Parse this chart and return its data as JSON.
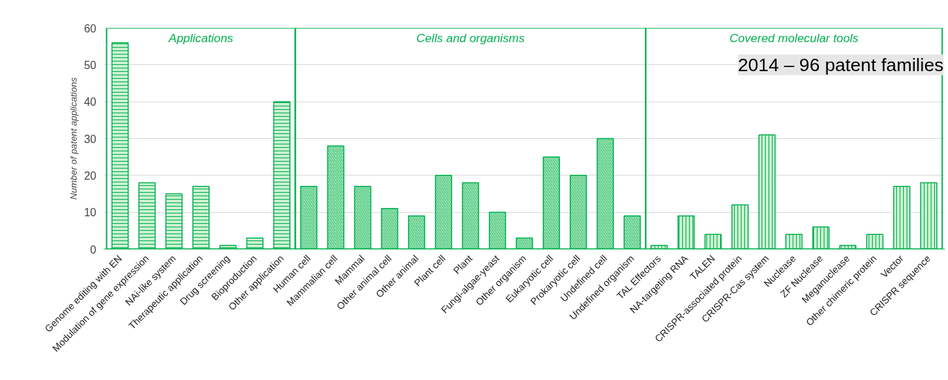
{
  "chart_data": {
    "type": "bar",
    "ylabel": "Number of patent applications",
    "categories": [
      "Genome editing with EN",
      "Modulation of gene expression",
      "NAi-like system",
      "Therapeutic application",
      "Drug screening",
      "Bioproduction",
      "Other application",
      "Human cell",
      "Mammalian cell",
      "Mammal",
      "Other animal cell",
      "Other animal",
      "Plant cell",
      "Plant",
      "Fungi-algae-yeast",
      "Other organism",
      "Eukaryotic cell",
      "Prokaryotic cell",
      "Undefined cell",
      "Undefined organism",
      "TAL Effectors",
      "NA-targeting RNA",
      "TALEN",
      "CRISPR-associated protein",
      "CRISPR-Cas system",
      "Nuclease",
      "ZF Nuclease",
      "Meganuclease",
      "Other chimeric protein",
      "Vector",
      "CRISPR sequence"
    ],
    "series": [
      {
        "color": "#00b050",
        "values": [
          56,
          18,
          15,
          17,
          1,
          3,
          40,
          null,
          null,
          null,
          null,
          null,
          null,
          null,
          null,
          null,
          null,
          null,
          null,
          null,
          null,
          null,
          null,
          null,
          null,
          null,
          null,
          null,
          null,
          null,
          null
        ]
      },
      {
        "color": "#00b050",
        "values": [
          null,
          null,
          null,
          null,
          null,
          null,
          null,
          17,
          28,
          17,
          11,
          9,
          20,
          18,
          10,
          3,
          25,
          20,
          30,
          9,
          null,
          null,
          null,
          null,
          null,
          null,
          null,
          null,
          null,
          null,
          null
        ]
      },
      {
        "color": "#00b050",
        "values": [
          null,
          null,
          null,
          null,
          null,
          null,
          null,
          null,
          null,
          null,
          null,
          null,
          null,
          null,
          null,
          null,
          null,
          null,
          null,
          null,
          1,
          9,
          4,
          12,
          31,
          4,
          6,
          1,
          4,
          17,
          18
        ]
      }
    ],
    "annotations": [
      "Applications",
      "Cells and organisms",
      "Covered molecular tools",
      "2014 – 96 patent families"
    ],
    "ylim": [
      0,
      60
    ],
    "yticks": [
      0,
      10,
      20,
      30,
      40,
      50,
      60
    ],
    "grid": "y"
  }
}
